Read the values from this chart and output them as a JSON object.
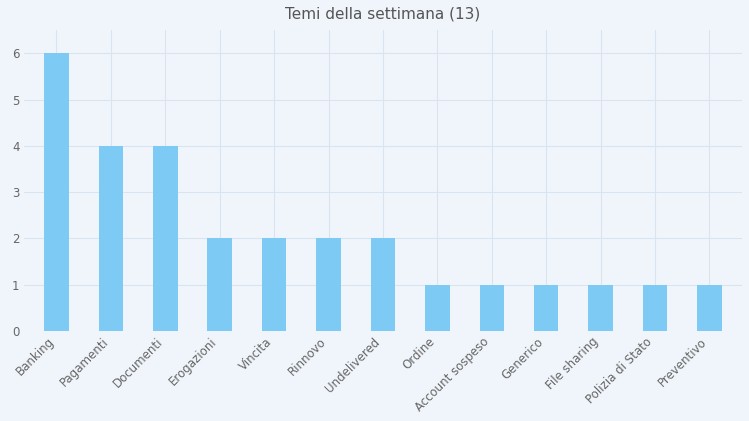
{
  "title": "Temi della settimana (13)",
  "categories": [
    "Banking",
    "Pagamenti",
    "Documenti",
    "Erogazioni",
    "Vincita",
    "Rinnovo",
    "Undelivered",
    "Ordine",
    "Account sospeso",
    "Generico",
    "File sharing",
    "Polizia di Stato",
    "Preventivo"
  ],
  "values": [
    6,
    4,
    4,
    2,
    2,
    2,
    2,
    1,
    1,
    1,
    1,
    1,
    1
  ],
  "bar_color": "#7DCBF5",
  "background_color": "#f0f5fb",
  "grid_color": "#d8e4f0",
  "title_color": "#555555",
  "label_color": "#666666",
  "ylim": [
    0,
    6.5
  ],
  "yticks": [
    0,
    1,
    2,
    3,
    4,
    5,
    6
  ],
  "title_fontsize": 11,
  "tick_fontsize": 8.5,
  "bar_width": 0.45
}
